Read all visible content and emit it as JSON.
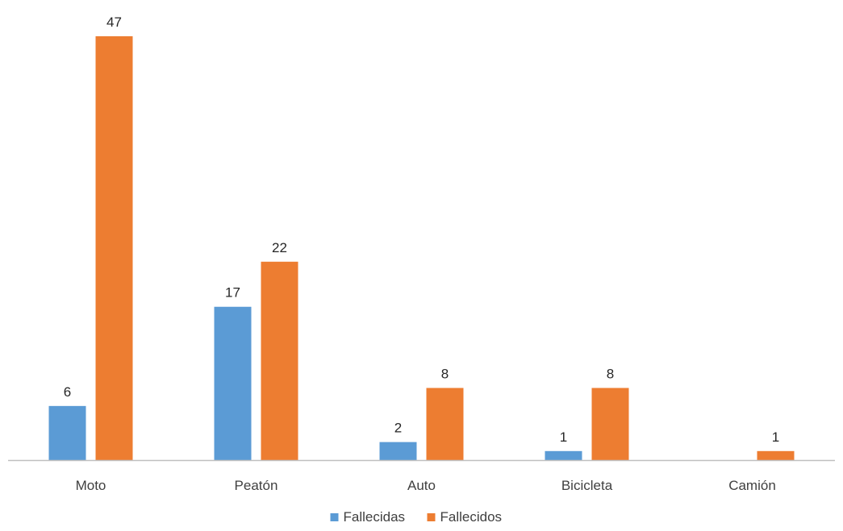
{
  "chart_data": {
    "type": "bar",
    "categories": [
      "Moto",
      "Peatón",
      "Auto",
      "Bicicleta",
      "Camión"
    ],
    "series": [
      {
        "name": "Fallecidas",
        "values": [
          6,
          17,
          2,
          1,
          null
        ],
        "color": "#5B9BD5"
      },
      {
        "name": "Fallecidos",
        "values": [
          47,
          22,
          8,
          8,
          1
        ],
        "color": "#ED7D31"
      }
    ],
    "data_labels": true,
    "ylim": [
      0,
      47
    ],
    "axis_color": "#BFBFBF",
    "grid": false,
    "legend_position": "bottom-center"
  }
}
